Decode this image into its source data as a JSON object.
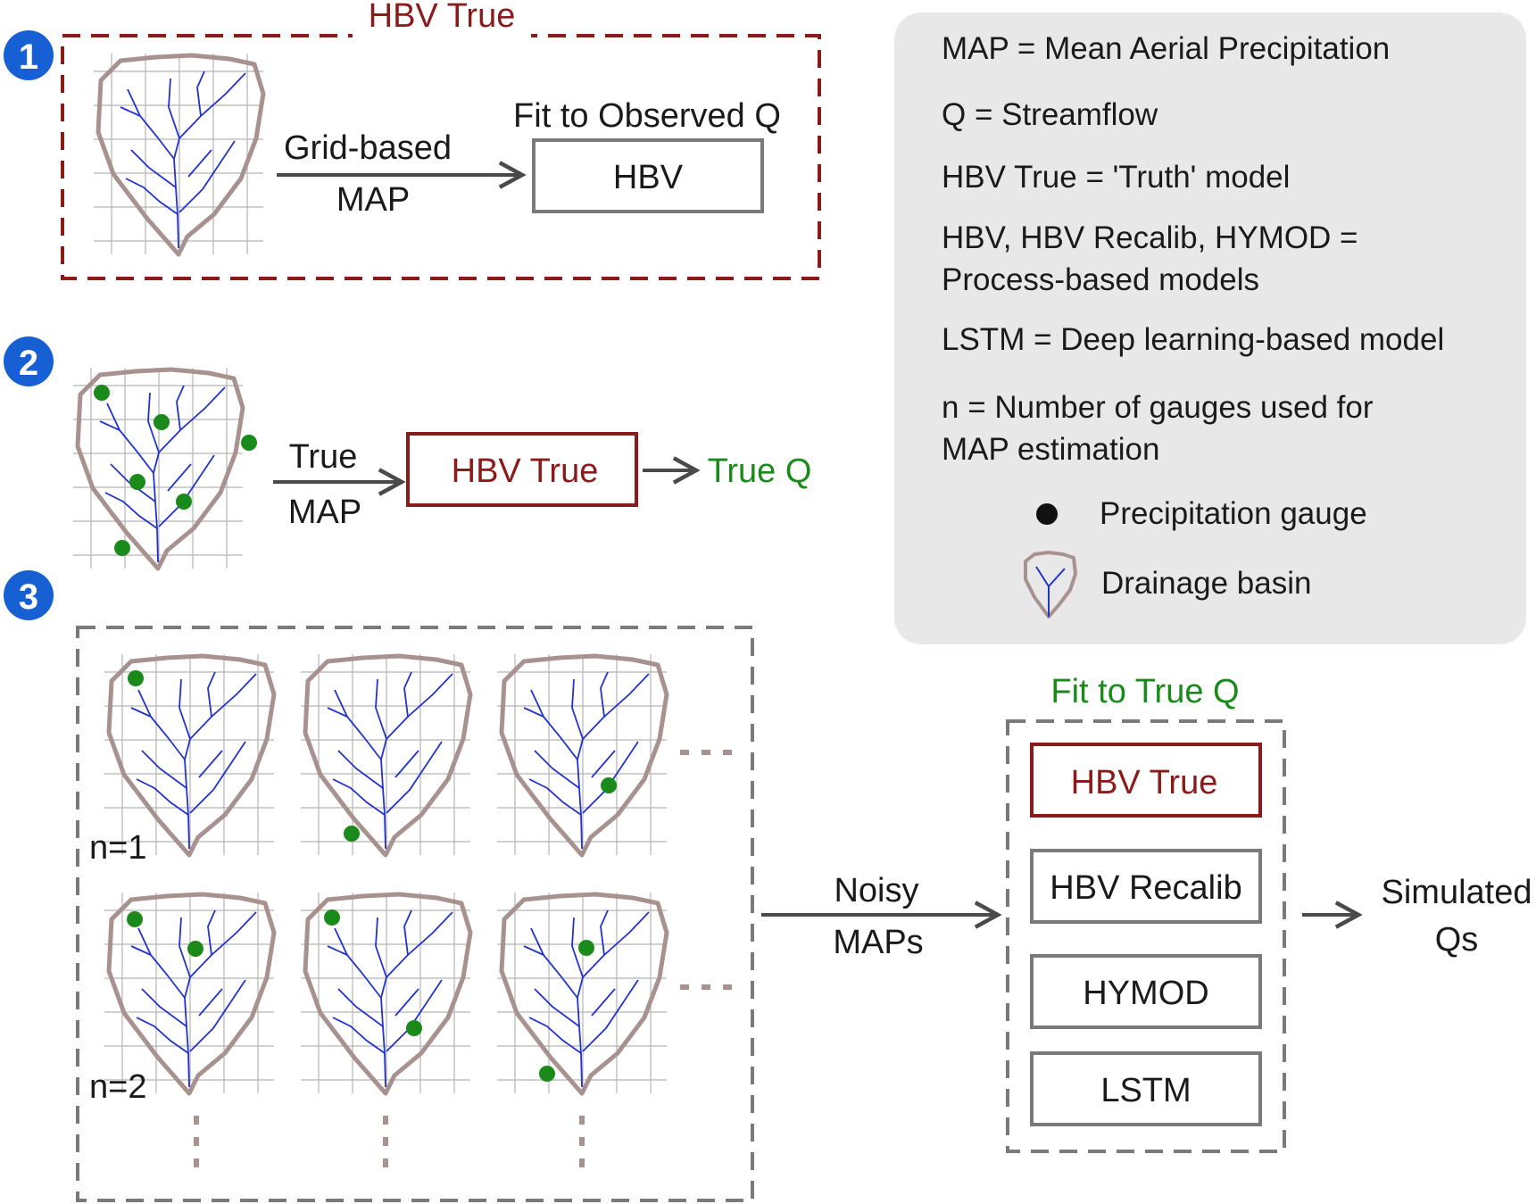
{
  "colors": {
    "dark_red": "#8b1a1a",
    "green": "#1a8a1a",
    "gauge_green": "#1a8a1a",
    "river_blue": "#2233cc",
    "basin_outline": "#a89290",
    "grid": "#b4b4b4",
    "box_gray": "#7a7a7a",
    "step_badge_blue": "#1660d4",
    "legend_bg": "#e8e8e8"
  },
  "steps": [
    {
      "number": "1"
    },
    {
      "number": "2"
    },
    {
      "number": "3"
    }
  ],
  "step1": {
    "frame_title": "HBV True",
    "arrow_label_line1": "Grid-based",
    "arrow_label_line2": "MAP",
    "fit_label": "Fit to Observed Q",
    "model_box": "HBV"
  },
  "step2": {
    "arrow_label_line1": "True",
    "arrow_label_line2": "MAP",
    "model_box": "HBV True",
    "output_label": "True Q"
  },
  "step3": {
    "row_labels": [
      "n=1",
      "n=2"
    ],
    "arrow_label_line1": "Noisy",
    "arrow_label_line2": "MAPs",
    "fit_label": "Fit to True Q",
    "models": [
      "HBV True",
      "HBV Recalib",
      "HYMOD",
      "LSTM"
    ],
    "output_line1": "Simulated",
    "output_line2": "Qs"
  },
  "legend": {
    "lines": [
      "MAP = Mean Aerial Precipitation",
      "Q = Streamflow",
      "HBV True = 'Truth' model",
      "HBV, HBV Recalib, HYMOD =",
      "Process-based models",
      "LSTM = Deep learning-based model",
      "n = Number of gauges used for",
      "MAP estimation"
    ],
    "gauge_label": "Precipitation gauge",
    "basin_label": "Drainage basin",
    "gauge_icon": "filled-circle",
    "basin_icon": "basin-outline-with-river"
  }
}
